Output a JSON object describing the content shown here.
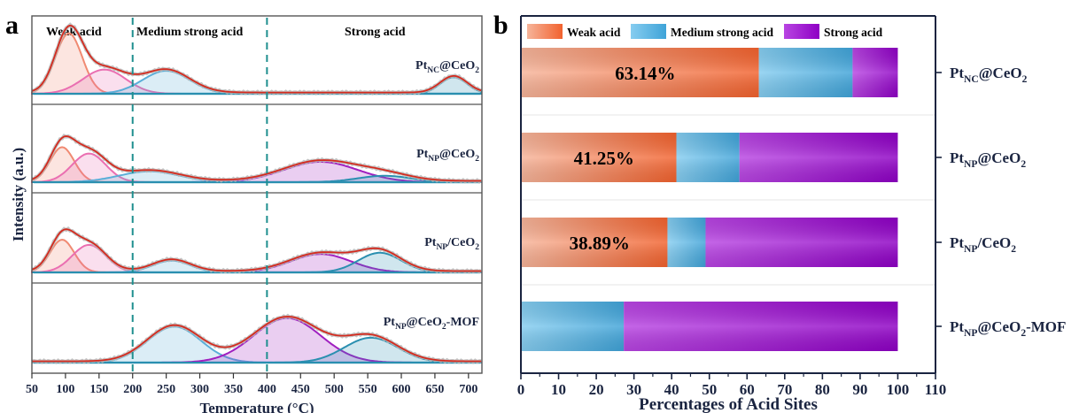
{
  "chart_data": [
    {
      "panel_label": "a",
      "type": "line",
      "xlabel": "Temperature (°C)",
      "ylabel": "Intensity (a.u.)",
      "xlim": [
        50,
        720
      ],
      "xticks": [
        50,
        100,
        150,
        200,
        250,
        300,
        350,
        400,
        450,
        500,
        550,
        600,
        650,
        700
      ],
      "region_dividers": [
        200,
        400
      ],
      "region_labels": [
        "Weak acid",
        "Medium strong acid",
        "Strong acid"
      ],
      "colors": {
        "envelope": "#d42a1e",
        "raw": "#b8b8b8",
        "weak_a": "#f08a72",
        "weak_b": "#ea6fb1",
        "medium": "#5aaed8",
        "strong_violet": "#a020c0",
        "strong_teal": "#2a8fb0",
        "divider": "#1f8f8f"
      },
      "panels": [
        {
          "sample": "Pt_NC@CeO2",
          "label": {
            "base": "Pt",
            "sub": "NC",
            "mid": "@CeO",
            "sub2": "2",
            "suffix": ""
          },
          "peaks": [
            {
              "center": 105,
              "height": 0.95,
              "width": 20,
              "color": "#f08a72"
            },
            {
              "center": 158,
              "height": 0.38,
              "width": 32,
              "color": "#ea6fb1"
            },
            {
              "center": 250,
              "height": 0.36,
              "width": 35,
              "color": "#5aaed8"
            },
            {
              "center": 678,
              "height": 0.26,
              "width": 20,
              "color": "#2a8fb0"
            }
          ]
        },
        {
          "sample": "Pt_NP@CeO2",
          "label": {
            "base": "Pt",
            "sub": "NP",
            "mid": "@CeO",
            "sub2": "2",
            "suffix": ""
          },
          "peaks": [
            {
              "center": 95,
              "height": 0.55,
              "width": 18,
              "color": "#f08a72"
            },
            {
              "center": 135,
              "height": 0.45,
              "width": 25,
              "color": "#ea6fb1"
            },
            {
              "center": 225,
              "height": 0.17,
              "width": 45,
              "color": "#5aaed8"
            },
            {
              "center": 480,
              "height": 0.32,
              "width": 55,
              "color": "#a020c0"
            },
            {
              "center": 575,
              "height": 0.1,
              "width": 40,
              "color": "#2a8fb0"
            }
          ]
        },
        {
          "sample": "Pt_NP/CeO2",
          "label": {
            "base": "Pt",
            "sub": "NP",
            "mid": "/CeO",
            "sub2": "2",
            "suffix": ""
          },
          "peaks": [
            {
              "center": 95,
              "height": 0.5,
              "width": 18,
              "color": "#f08a72"
            },
            {
              "center": 135,
              "height": 0.42,
              "width": 25,
              "color": "#ea6fb1"
            },
            {
              "center": 258,
              "height": 0.18,
              "width": 28,
              "color": "#5aaed8"
            },
            {
              "center": 480,
              "height": 0.28,
              "width": 45,
              "color": "#a020c0"
            },
            {
              "center": 568,
              "height": 0.3,
              "width": 32,
              "color": "#2a8fb0"
            }
          ]
        },
        {
          "sample": "Pt_NP@CeO2-MOF",
          "label": {
            "base": "Pt",
            "sub": "NP",
            "mid": "@CeO",
            "sub2": "2",
            "suffix": "-MOF"
          },
          "peaks": [
            {
              "center": 262,
              "height": 0.55,
              "width": 40,
              "color": "#5aaed8"
            },
            {
              "center": 430,
              "height": 0.68,
              "width": 50,
              "color": "#a020c0"
            },
            {
              "center": 555,
              "height": 0.38,
              "width": 40,
              "color": "#2a8fb0"
            }
          ]
        }
      ]
    },
    {
      "panel_label": "b",
      "type": "bar",
      "orientation": "horizontal",
      "stacked": true,
      "xlabel": "Percentages of Acid Sites",
      "xlim": [
        0,
        110
      ],
      "xticks": [
        0,
        10,
        20,
        30,
        40,
        50,
        60,
        70,
        80,
        90,
        100,
        110
      ],
      "legend": {
        "position": "top",
        "entries": [
          "Weak acid",
          "Medium strong acid",
          "Strong acid"
        ]
      },
      "categories": [
        {
          "base": "Pt",
          "sub": "NC",
          "mid": "@CeO",
          "sub2": "2",
          "suffix": ""
        },
        {
          "base": "Pt",
          "sub": "NP",
          "mid": "@CeO",
          "sub2": "2",
          "suffix": ""
        },
        {
          "base": "Pt",
          "sub": "NP",
          "mid": "/CeO",
          "sub2": "2",
          "suffix": ""
        },
        {
          "base": "Pt",
          "sub": "NP",
          "mid": "@CeO",
          "sub2": "2",
          "suffix": "-MOF"
        }
      ],
      "series": [
        {
          "name": "Weak acid",
          "color_left": "#f4a98a",
          "color": "#f26a3a",
          "values": [
            63.14,
            41.25,
            38.89,
            0
          ]
        },
        {
          "name": "Medium strong acid",
          "color_left": "#7cc8ec",
          "color": "#4aa8dc",
          "values": [
            24.86,
            16.75,
            10.11,
            27.3
          ]
        },
        {
          "name": "Strong acid",
          "color_left": "#b23be0",
          "color": "#9400c8",
          "values": [
            12.0,
            42.0,
            51.0,
            72.7
          ]
        }
      ],
      "data_labels": [
        "63.14%",
        "41.25%",
        "38.89%",
        ""
      ]
    }
  ]
}
